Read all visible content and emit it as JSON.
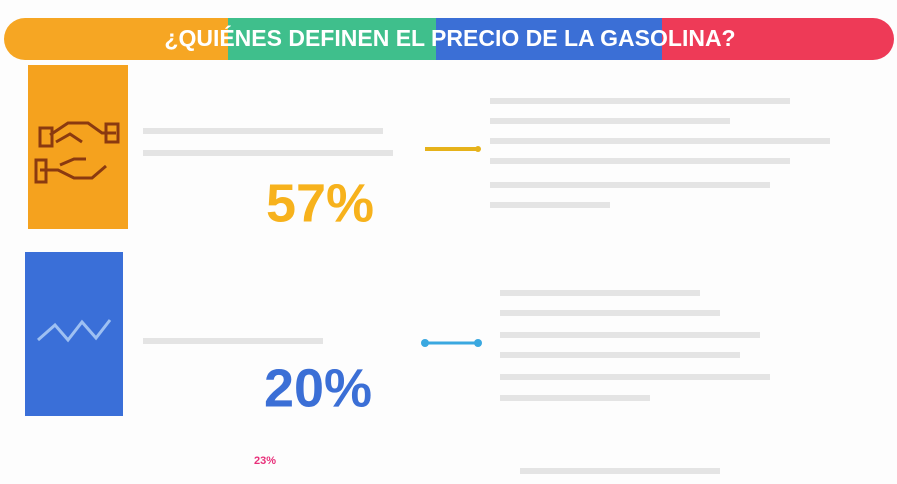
{
  "header": {
    "title": "¿QUIÉNES DEFINEN EL PRECIO DE LA GASOLINA?"
  },
  "items": [
    {
      "percent": "57%"
    },
    {
      "percent": "20%"
    },
    {
      "percent": "23%"
    }
  ]
}
